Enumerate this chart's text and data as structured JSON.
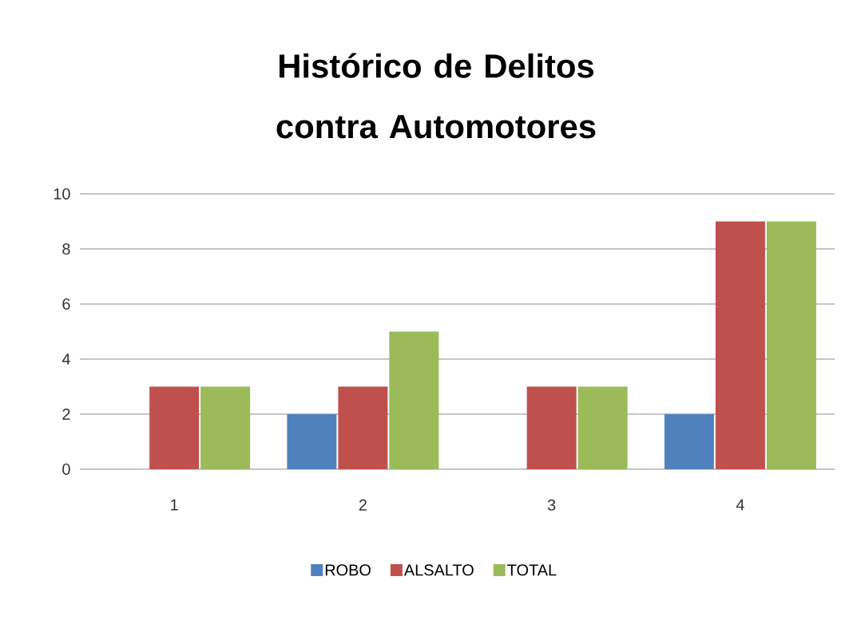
{
  "chart_data": {
    "type": "bar",
    "title": "Histórico de Delitos contra Automotores",
    "categories": [
      "1",
      "2",
      "3",
      "4"
    ],
    "series": [
      {
        "name": "ROBO",
        "color": "#4f81bd",
        "values": [
          0,
          2,
          0,
          2
        ]
      },
      {
        "name": "ALSALTO",
        "color": "#c0504d",
        "values": [
          3,
          3,
          3,
          9
        ]
      },
      {
        "name": "TOTAL",
        "color": "#9bbb59",
        "values": [
          3,
          5,
          3,
          9
        ]
      }
    ],
    "ylim": [
      0,
      10
    ],
    "yticks": [
      0,
      2,
      4,
      6,
      8,
      10
    ],
    "grid": "y",
    "legend": "bottom"
  }
}
